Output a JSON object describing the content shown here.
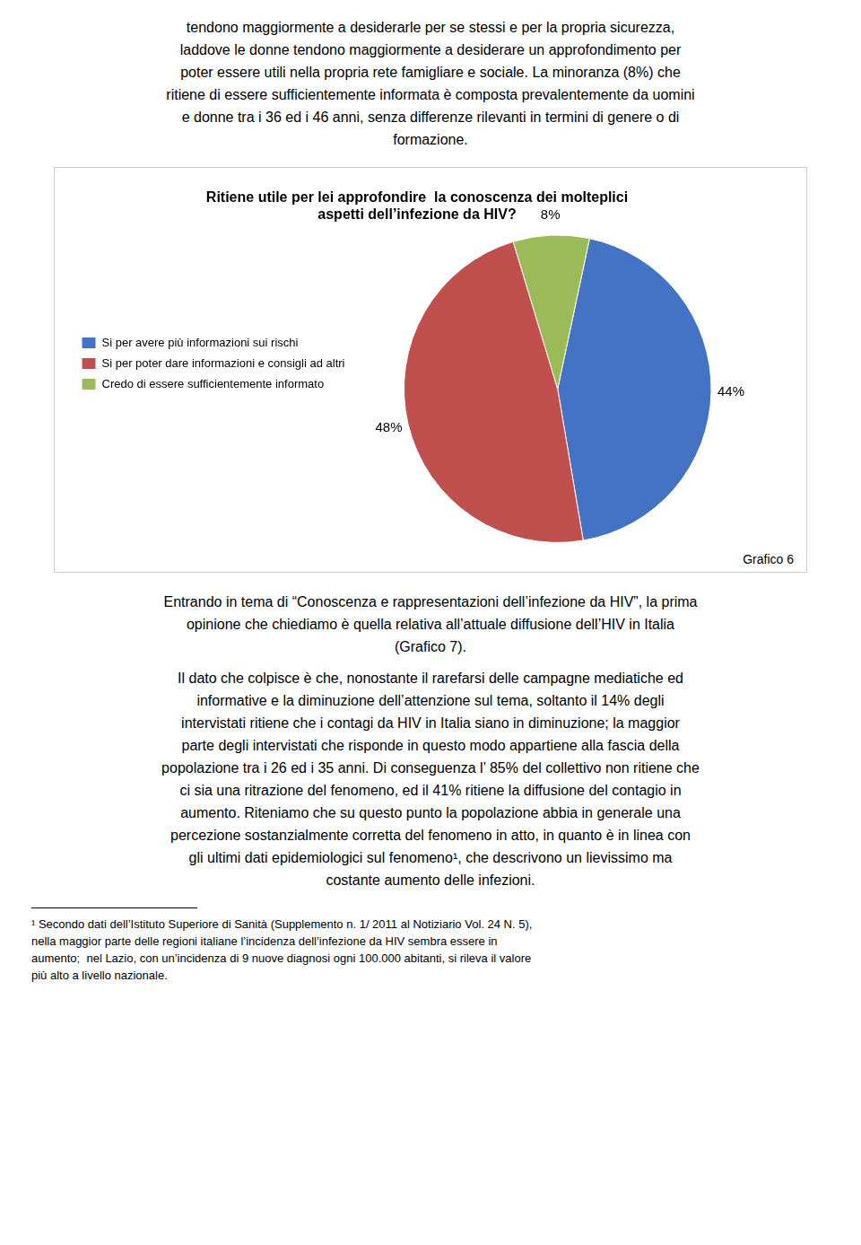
{
  "text_before": [
    "tendono maggiormente a desiderarle per se stessi e per la propria sicurezza,",
    "laddove le donne tendono maggiormente a desiderare un approfondimento per",
    "poter essere utili nella propria rete famigliare e sociale. La minoranza (8%) che",
    "ritiene di essere sufficientemente informata è composta prevalentemente da uomini",
    "e donne tra i 36 ed i 46 anni, senza differenze rilevanti in termini di genere o di",
    "formazione."
  ],
  "text_after": [
    [
      "Entrando in tema di “Conoscenza e rappresentazioni dell’infezione da HIV”, la prima",
      "opinione che chiediamo è quella relativa all’attuale diffusione dell’HIV in Italia",
      "(Grafico 7)."
    ],
    [
      "Il dato che colpisce è che, nonostante il rarefarsi delle campagne mediatiche ed",
      "informative e la diminuzione dell’attenzione sul tema, soltanto il 14% degli",
      "intervistati ritiene che i contagi da HIV in Italia siano in diminuzione; la maggior",
      "parte degli intervistati che risponde in questo modo appartiene alla fascia della",
      "popolazione tra i 26 ed i 35 anni. Di conseguenza l’ 85% del collettivo non ritiene che",
      "ci sia una ritrazione del fenomeno, ed il 41% ritiene la diffusione del contagio in",
      "aumento. Riteniamo che su questo punto la popolazione abbia in generale una",
      "percezione sostanzialmente corretta del fenomeno in atto, in quanto è in linea con",
      "gli ultimi dati epidemiologici sul fenomeno¹, che descrivono un lievissimo ma",
      "costante aumento delle infezioni."
    ]
  ],
  "footnotes": [
    "¹ Secondo dati dell’Istituto Superiore di Sanità (Supplemento n. 1/ 2011 al Notiziario Vol. 24 N. 5),",
    "nella maggior parte delle regioni italiane l’incidenza dell’infezione da HIV sembra essere in",
    "aumento;  nel Lazio, con un’incidenza di 9 nuove diagnosi ogni 100.000 abitanti, si rileva il valore",
    "più alto a livello nazionale."
  ],
  "chart_data": {
    "type": "pie",
    "title": [
      "Ritiene utile per lei approfondire  la conoscenza dei molteplici",
      "aspetti dell’infezione da HIV?"
    ],
    "categories": [
      "Si per avere più informazioni sui rischi",
      "Si per poter dare informazioni e consigli ad altri",
      "Credo di essere sufficientemente informato"
    ],
    "values": [
      44,
      48,
      8
    ],
    "value_labels": [
      "44%",
      "48%",
      "8%"
    ],
    "colors": [
      "#4472C4",
      "#C0504D",
      "#9BBB59"
    ],
    "data_labels": true,
    "legend": "left",
    "annotations": [
      "Grafico 6"
    ]
  }
}
